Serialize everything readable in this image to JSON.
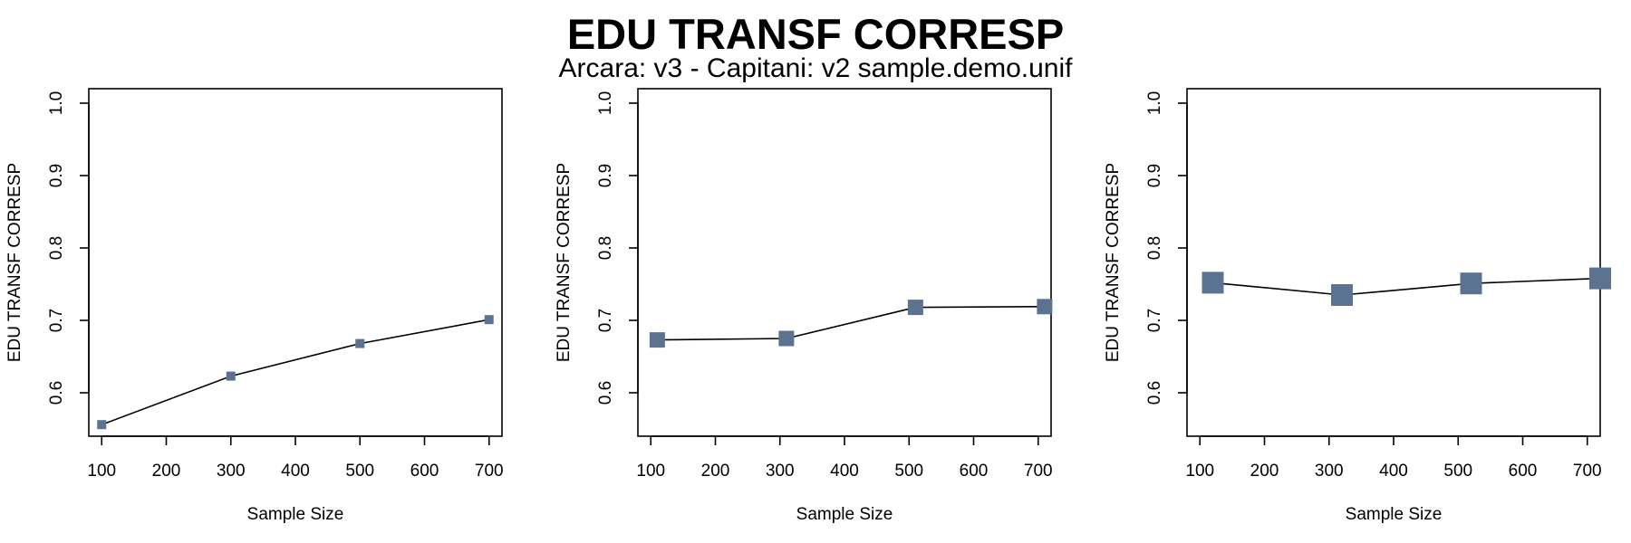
{
  "figure": {
    "title": "EDU TRANSF CORRESP",
    "subtitle": "Arcara: v3 - Capitani: v2 sample.demo.unif"
  },
  "colors": {
    "marker": "#5b7290",
    "line": "#000000",
    "axis": "#000000"
  },
  "chart_data": [
    {
      "type": "line",
      "title": "",
      "xlabel": "Sample Size",
      "ylabel": "EDU TRANSF CORRESP",
      "xlim": [
        80,
        720
      ],
      "ylim": [
        0.54,
        1.02
      ],
      "xticks": [
        100,
        200,
        300,
        400,
        500,
        600,
        700
      ],
      "yticks": [
        0.6,
        0.7,
        0.8,
        0.9,
        1.0
      ],
      "ytick_labels": [
        "0.6",
        "0.7",
        "0.8",
        "0.9",
        "1.0"
      ],
      "marker_size": 1,
      "series": [
        {
          "name": "EDU TRANSF CORRESP",
          "x": [
            100,
            300,
            500,
            700
          ],
          "y": [
            0.556,
            0.623,
            0.668,
            0.701
          ]
        }
      ]
    },
    {
      "type": "line",
      "title": "",
      "xlabel": "Sample Size",
      "ylabel": "EDU TRANSF CORRESP",
      "xlim": [
        80,
        720
      ],
      "ylim": [
        0.54,
        1.02
      ],
      "xticks": [
        100,
        200,
        300,
        400,
        500,
        600,
        700
      ],
      "yticks": [
        0.6,
        0.7,
        0.8,
        0.9,
        1.0
      ],
      "ytick_labels": [
        "0.6",
        "0.7",
        "0.8",
        "0.9",
        "1.0"
      ],
      "marker_size": 2,
      "series": [
        {
          "name": "EDU TRANSF CORRESP",
          "x": [
            110,
            310,
            510,
            710
          ],
          "y": [
            0.673,
            0.675,
            0.718,
            0.719
          ]
        }
      ]
    },
    {
      "type": "line",
      "title": "",
      "xlabel": "Sample Size",
      "ylabel": "EDU TRANSF CORRESP",
      "xlim": [
        80,
        720
      ],
      "ylim": [
        0.54,
        1.02
      ],
      "xticks": [
        100,
        200,
        300,
        400,
        500,
        600,
        700
      ],
      "yticks": [
        0.6,
        0.7,
        0.8,
        0.9,
        1.0
      ],
      "ytick_labels": [
        "0.6",
        "0.7",
        "0.8",
        "0.9",
        "1.0"
      ],
      "marker_size": 3,
      "series": [
        {
          "name": "EDU TRANSF CORRESP",
          "x": [
            120,
            320,
            520,
            720
          ],
          "y": [
            0.752,
            0.735,
            0.751,
            0.758
          ]
        }
      ]
    }
  ]
}
